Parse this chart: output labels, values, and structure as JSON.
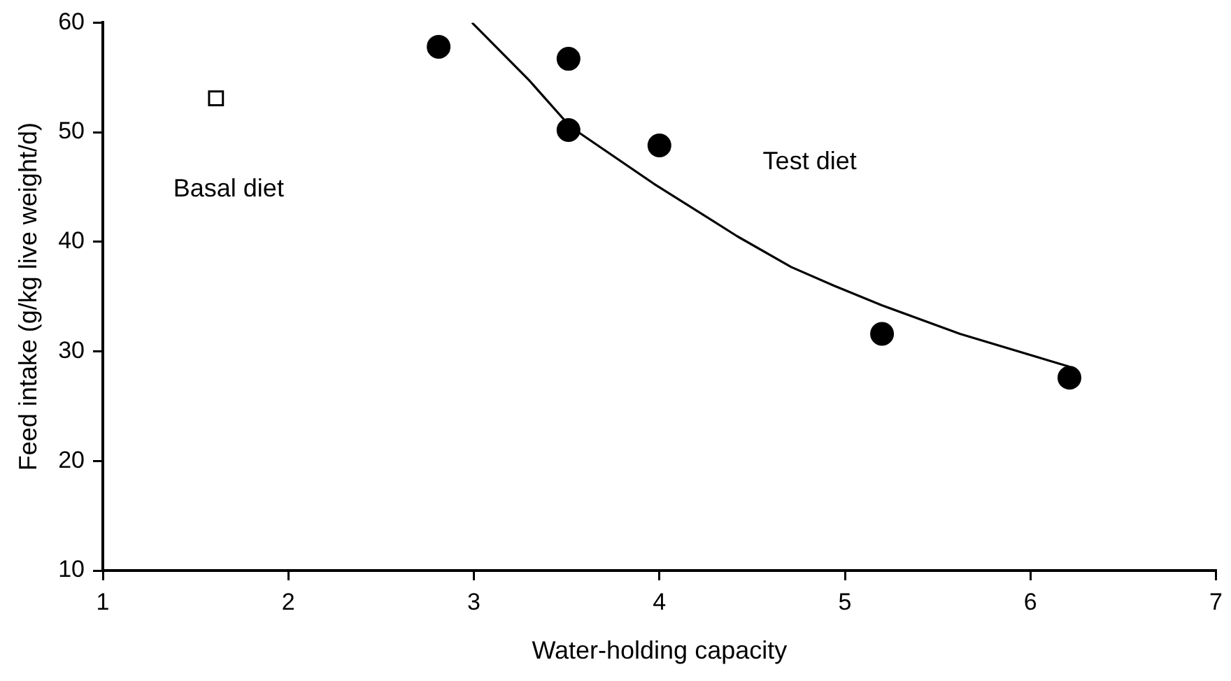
{
  "chart_data": {
    "type": "scatter",
    "xlabel": "Water-holding capacity",
    "ylabel": "Feed intake (g/kg live weight/d)",
    "xlim": [
      1,
      7
    ],
    "xticks": [
      1,
      2,
      3,
      4,
      5,
      6,
      7
    ],
    "ylim": [
      10,
      60
    ],
    "yticks": [
      10,
      20,
      30,
      40,
      50,
      60
    ],
    "series": [
      {
        "marker": "square",
        "color": "#000000",
        "x": [
          1.61
        ],
        "values": [
          53.1
        ]
      },
      {
        "marker": "circle",
        "color": "#000000",
        "x": [
          2.81,
          3.51,
          3.51,
          4.0,
          5.2,
          6.21
        ],
        "values": [
          57.8,
          56.7,
          50.2,
          48.8,
          31.6,
          27.6
        ]
      },
      {
        "type": "line",
        "marker": "none",
        "color": "#000000",
        "x": [
          2.99,
          3.3,
          3.52,
          3.97,
          4.42,
          4.71,
          4.94,
          5.2,
          5.62,
          6.21
        ],
        "values": [
          60,
          54.7,
          50.5,
          45.3,
          40.5,
          37.7,
          36.0,
          34.2,
          31.6,
          28.6
        ]
      }
    ],
    "annotations": [
      "Basal diet",
      "Test diet"
    ]
  }
}
